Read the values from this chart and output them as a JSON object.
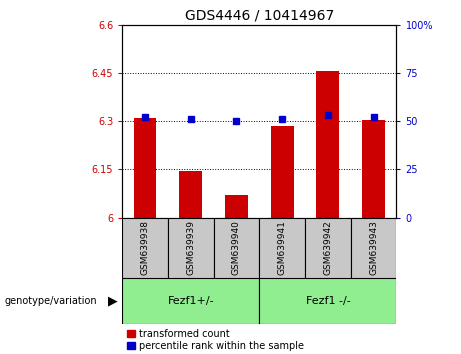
{
  "title": "GDS4446 / 10414967",
  "samples": [
    "GSM639938",
    "GSM639939",
    "GSM639940",
    "GSM639941",
    "GSM639942",
    "GSM639943"
  ],
  "red_values": [
    6.31,
    6.145,
    6.07,
    6.285,
    6.455,
    6.305
  ],
  "blue_values": [
    52,
    51,
    50,
    51,
    53,
    52
  ],
  "ylim_left": [
    6.0,
    6.6
  ],
  "ylim_right": [
    0,
    100
  ],
  "yticks_left": [
    6.0,
    6.15,
    6.3,
    6.45,
    6.6
  ],
  "yticks_right": [
    0,
    25,
    50,
    75,
    100
  ],
  "ytick_labels_left": [
    "6",
    "6.15",
    "6.3",
    "6.45",
    "6.6"
  ],
  "ytick_labels_right": [
    "0",
    "25",
    "50",
    "75",
    "100%"
  ],
  "group1_label": "Fezf1+/-",
  "group2_label": "Fezf1 -/-",
  "group1_indices": [
    0,
    1,
    2
  ],
  "group2_indices": [
    3,
    4,
    5
  ],
  "legend_red": "transformed count",
  "legend_blue": "percentile rank within the sample",
  "genotype_label": "genotype/variation",
  "red_color": "#cc0000",
  "blue_color": "#0000cc",
  "bar_width": 0.5,
  "marker_size": 5,
  "group1_bg": "#90ee90",
  "group2_bg": "#90ee90",
  "sample_bg": "#c8c8c8",
  "title_fontsize": 10,
  "tick_fontsize": 7,
  "label_fontsize": 7
}
